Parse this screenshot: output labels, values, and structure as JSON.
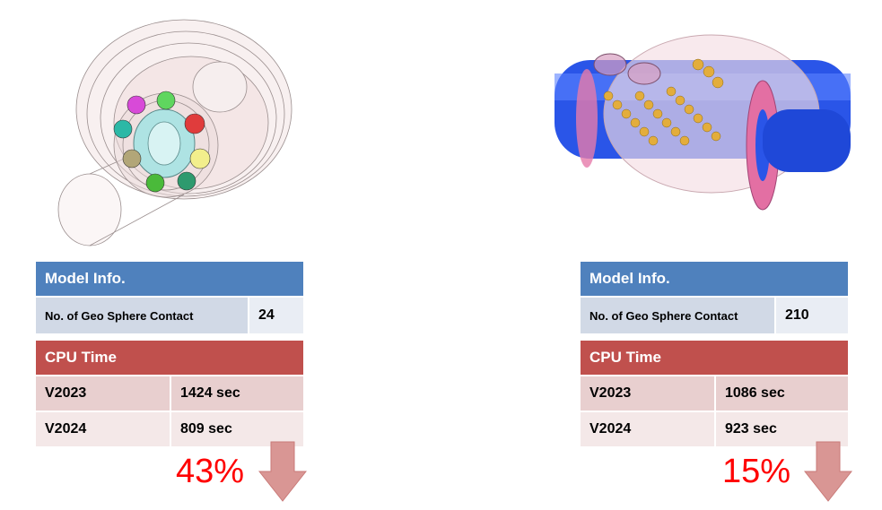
{
  "left": {
    "model_info_header": "Model Info.",
    "contact_label": "No. of Geo Sphere Contact",
    "contact_value": "24",
    "cpu_header": "CPU Time",
    "rows": [
      {
        "version": "V2023",
        "time": "1424 sec"
      },
      {
        "version": "V2024",
        "time": "809 sec"
      }
    ],
    "reduction": "43%"
  },
  "right": {
    "model_info_header": "Model Info.",
    "contact_label": "No. of Geo Sphere Contact",
    "contact_value": "210",
    "cpu_header": "CPU Time",
    "rows": [
      {
        "version": "V2023",
        "time": "1086 sec"
      },
      {
        "version": "V2024",
        "time": "923 sec"
      }
    ],
    "reduction": "15%"
  },
  "colors": {
    "info_header": "#4f81bd",
    "cpu_header": "#c0504d",
    "reduction_text": "#ff0000",
    "arrow_fill": "#d99694"
  },
  "icons": {
    "left_render": "bearing-model-render",
    "right_render": "ball-screw-model-render",
    "arrows": "down-arrow-icon"
  }
}
